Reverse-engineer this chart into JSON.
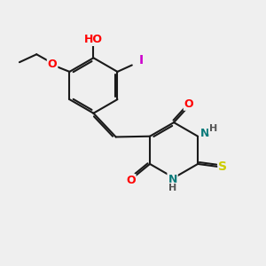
{
  "bg_color": "#efefef",
  "bond_color": "#1a1a1a",
  "bond_width": 1.5,
  "atom_colors": {
    "O": "#ff0000",
    "N": "#0a7a7a",
    "S": "#cccc00",
    "I": "#cc00cc",
    "H": "#555555",
    "C": "#1a1a1a"
  },
  "font_size": 9,
  "fig_size": [
    3.0,
    3.0
  ],
  "dpi": 100,
  "xlim": [
    0,
    10
  ],
  "ylim": [
    0,
    10
  ]
}
